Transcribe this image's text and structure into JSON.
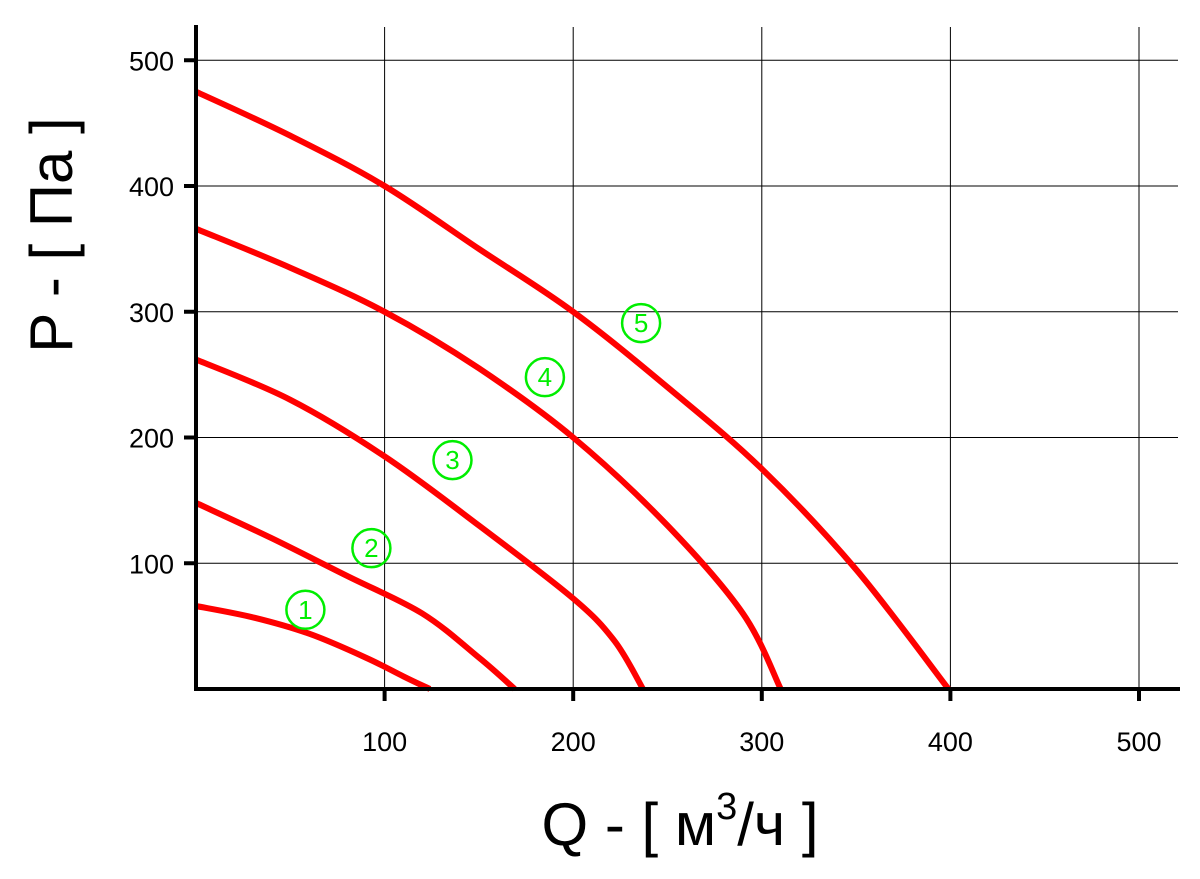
{
  "chart_data": {
    "type": "line",
    "xlabel": "Q - [ м³/ч ]",
    "xlabel_parts": {
      "pre": "Q - [ м",
      "sup": "3",
      "post": "/ч ]"
    },
    "ylabel": "P - [ Па ]",
    "xlim": [
      0,
      520
    ],
    "ylim": [
      0,
      520
    ],
    "x_ticks": [
      "100",
      "200",
      "300",
      "400",
      "500"
    ],
    "y_ticks": [
      "100",
      "200",
      "300",
      "400",
      "500"
    ],
    "grid": true,
    "line_color": "#ff0000",
    "badge_color": "#00ee00",
    "series": [
      {
        "name": "1",
        "points": [
          [
            0,
            66
          ],
          [
            30,
            57
          ],
          [
            60,
            44
          ],
          [
            90,
            25
          ],
          [
            110,
            10
          ],
          [
            124,
            0
          ]
        ]
      },
      {
        "name": "2",
        "points": [
          [
            0,
            148
          ],
          [
            40,
            120
          ],
          [
            80,
            90
          ],
          [
            120,
            60
          ],
          [
            150,
            25
          ],
          [
            169,
            0
          ]
        ]
      },
      {
        "name": "3",
        "points": [
          [
            0,
            262
          ],
          [
            50,
            230
          ],
          [
            100,
            185
          ],
          [
            150,
            130
          ],
          [
            200,
            72
          ],
          [
            222,
            38
          ],
          [
            237,
            0
          ]
        ]
      },
      {
        "name": "4",
        "points": [
          [
            0,
            366
          ],
          [
            50,
            335
          ],
          [
            100,
            300
          ],
          [
            150,
            255
          ],
          [
            200,
            200
          ],
          [
            250,
            130
          ],
          [
            290,
            60
          ],
          [
            310,
            0
          ]
        ]
      },
      {
        "name": "5",
        "points": [
          [
            0,
            475
          ],
          [
            50,
            440
          ],
          [
            100,
            400
          ],
          [
            150,
            350
          ],
          [
            200,
            300
          ],
          [
            250,
            240
          ],
          [
            300,
            175
          ],
          [
            350,
            95
          ],
          [
            399,
            0
          ]
        ]
      }
    ],
    "badges": [
      {
        "label": "1",
        "x": 58,
        "y": 63
      },
      {
        "label": "2",
        "x": 93,
        "y": 112
      },
      {
        "label": "3",
        "x": 136,
        "y": 182
      },
      {
        "label": "4",
        "x": 185,
        "y": 248
      },
      {
        "label": "5",
        "x": 236,
        "y": 291
      }
    ]
  }
}
